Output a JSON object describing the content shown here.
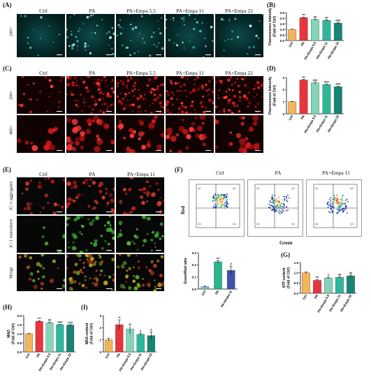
{
  "panels": {
    "A": "(A)",
    "B": "(B)",
    "C": "(C)",
    "D": "(D)",
    "E": "(E)",
    "F": "(F)",
    "G": "(G)",
    "H": "(H)",
    "I": "(I)"
  },
  "groups5": [
    "Ctrl",
    "PA",
    "PA+Empa 5.5",
    "PA+Empa 11",
    "PA+Empa 22"
  ],
  "groups3": [
    "Ctrl",
    "PA",
    "PA+Empa 11"
  ],
  "rows": {
    "A": [
      "200×"
    ],
    "C": [
      "200×",
      "400×"
    ],
    "E": [
      "JC-1 aggregates",
      "JC-1 monomers",
      "Merge"
    ]
  },
  "flow": {
    "ylabel": "Red",
    "xlabel": "Green",
    "quadrants": [
      [
        "Q1",
        "Q2",
        "Q3",
        "Q4"
      ],
      [
        "Q1",
        "Q2",
        "Q3",
        "Q4"
      ],
      [
        "Q1",
        "Q2",
        "Q3",
        "Q4"
      ]
    ]
  },
  "colors": {
    "ctrl": "#f2b55a",
    "pa": "#e8343b",
    "e55": "#84d4b8",
    "e11": "#2eb79b",
    "e22": "#178574",
    "f_ctrl": "#8fb3c9",
    "f_pa": "#2bb38f",
    "f_e11": "#3f53a8"
  },
  "chart_data": [
    {
      "id": "B",
      "type": "bar",
      "ylabel": "Fluorescence Intensity (Fold of Ctrl)",
      "categories": [
        "Ctrl",
        "PA",
        "PA+Empa 5.5",
        "PA+Empa 11",
        "PA+Empa 22"
      ],
      "values": [
        1.0,
        2.05,
        1.88,
        1.8,
        1.56
      ],
      "errors": [
        0.02,
        0.04,
        0.04,
        0.05,
        0.04
      ],
      "sig": [
        "",
        "***",
        "##",
        "##",
        "###"
      ],
      "ylim": [
        0,
        2.5
      ],
      "ticks": [
        0,
        0.5,
        1.0,
        1.5,
        2.0,
        2.5
      ]
    },
    {
      "id": "D",
      "type": "bar",
      "ylabel": "Fluorescence Intensity (Fold of Ctrl)",
      "categories": [
        "Ctrl",
        "PA",
        "PA+Empa 5.5",
        "PA+Empa 11",
        "PA+Empa 22"
      ],
      "values": [
        1.0,
        2.8,
        2.56,
        2.42,
        2.24
      ],
      "errors": [
        0.03,
        0.04,
        0.03,
        0.03,
        0.03
      ],
      "sig": [
        "",
        "***",
        "###",
        "###",
        "###"
      ],
      "ylim": [
        0,
        3
      ],
      "ticks": [
        0,
        1,
        2,
        3
      ]
    },
    {
      "id": "F",
      "type": "bar",
      "ylabel": "Green/Red ratio",
      "categories": [
        "Ctrl",
        "PA",
        "PA+Empa 11"
      ],
      "values": [
        0.02,
        0.225,
        0.155
      ],
      "errors": [
        0.004,
        0.01,
        0.035
      ],
      "sig": [
        "",
        "***",
        "#"
      ],
      "ylim": [
        0,
        0.3
      ],
      "ticks": [
        0.0,
        0.1,
        0.2,
        0.3
      ]
    },
    {
      "id": "G",
      "type": "bar",
      "ylabel": "ATP content (Fold of Ctrl)",
      "categories": [
        "Ctrl",
        "PA",
        "PA+Empa 5.5",
        "PA+Empa 11",
        "PA+Empa 22"
      ],
      "values": [
        1.0,
        0.63,
        0.75,
        0.78,
        0.85
      ],
      "errors": [
        0.04,
        0.03,
        0.03,
        0.02,
        0.04
      ],
      "sig": [
        "",
        "***",
        "#",
        "##",
        "##"
      ],
      "ylim": [
        0,
        1.5
      ],
      "ticks": [
        0,
        0.5,
        1.0,
        1.5
      ]
    },
    {
      "id": "H",
      "type": "bar",
      "ylabel": "MAO (Fold of Ctrl)",
      "categories": [
        "Ctrl",
        "PA",
        "PA+Empa 5.5",
        "PA+Empa 11",
        "PA+Empa 22"
      ],
      "values": [
        1.0,
        1.68,
        1.6,
        1.5,
        1.48
      ],
      "errors": [
        0.02,
        0.03,
        0.03,
        0.02,
        0.02
      ],
      "sig": [
        "",
        "***",
        "##",
        "###",
        "###"
      ],
      "ylim": [
        0,
        2.0
      ],
      "ticks": [
        0,
        0.5,
        1.0,
        1.5,
        2.0
      ]
    },
    {
      "id": "I",
      "type": "bar",
      "ylabel": "MDA content (Fold of Ctrl)",
      "categories": [
        "Ctrl",
        "PA",
        "PA+Empa 5.5",
        "PA+Empa 11",
        "PA+Empa 22"
      ],
      "values": [
        1.0,
        2.25,
        1.9,
        1.45,
        1.35
      ],
      "errors": [
        0.12,
        0.4,
        0.4,
        0.1,
        0.3
      ],
      "sig": [
        "",
        "**",
        "",
        "#",
        "#"
      ],
      "ylim": [
        0,
        3
      ],
      "ticks": [
        0,
        1,
        2,
        3
      ]
    }
  ]
}
